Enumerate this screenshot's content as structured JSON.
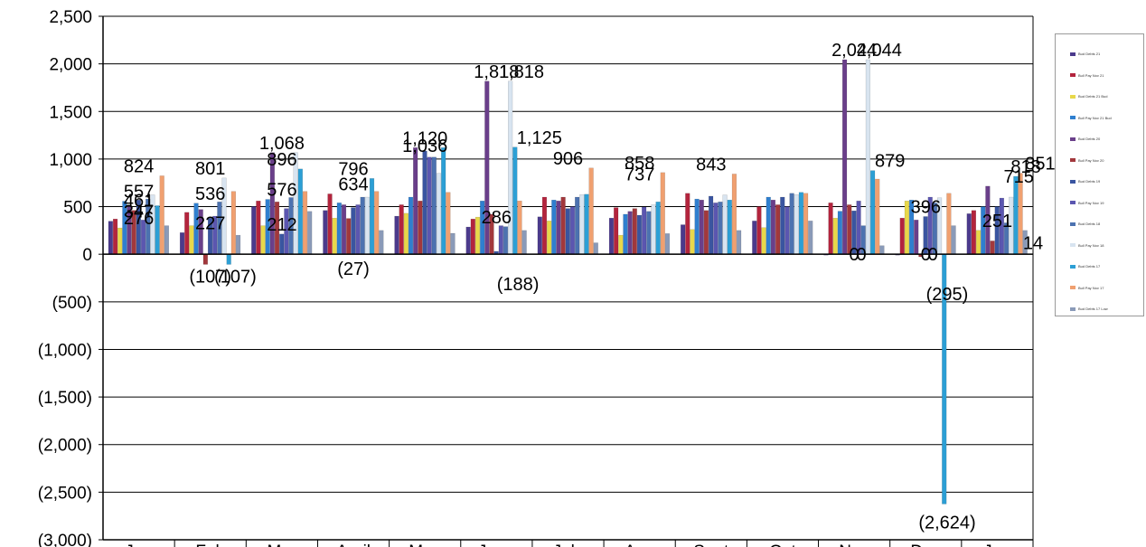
{
  "chart_data": {
    "type": "bar",
    "categories": [
      "Jan",
      "Feb",
      "Mar",
      "April",
      "May",
      "June",
      "July",
      "Aug",
      "Sept",
      "Oct",
      "Nov",
      "Dec",
      "Jan"
    ],
    "yticks": [
      "2,500",
      "2,000",
      "1,500",
      "1,000",
      "500",
      "0",
      "(500)",
      "(1,000)",
      "(1,500)",
      "(2,000)",
      "(2,500)",
      "(3,000)"
    ],
    "ylim": [
      -3000,
      2500
    ],
    "grid": true,
    "legend_position": "right",
    "series": [
      {
        "name": "Bud Debts 21",
        "color": "#4b3a8c",
        "values": [
          347,
          227,
          501,
          460,
          400,
          286,
          393,
          380,
          310,
          350,
          0,
          0,
          426
        ]
      },
      {
        "name": "Bull Pay Nov 21",
        "color": "#b3243d",
        "values": [
          370,
          440,
          560,
          634,
          520,
          370,
          600,
          490,
          640,
          500,
          540,
          380,
          460
        ]
      },
      {
        "name": "Bud Debts 21 Bud",
        "color": "#e8d84a",
        "values": [
          276,
          300,
          300,
          380,
          430,
          390,
          350,
          200,
          260,
          280,
          380,
          560,
          251
        ]
      },
      {
        "name": "Bull Pay Nov 21 Bud",
        "color": "#2f7fcf",
        "values": [
          557,
          536,
          576,
          540,
          600,
          560,
          570,
          420,
          580,
          600,
          452,
          570,
          500
        ]
      },
      {
        "name": "Bud Debts 20",
        "color": "#6a3f8a",
        "values": [
          500,
          470,
          1068,
          520,
          1120,
          1818,
          560,
          450,
          570,
          570,
          2044,
          360,
          715
        ]
      },
      {
        "name": "Bull Pay Nov 20",
        "color": "#a2383c",
        "values": [
          461,
          -107,
          550,
          376,
          560,
          420,
          600,
          480,
          460,
          520,
          520,
          -27,
          140
        ]
      },
      {
        "name": "Bud Debts 19",
        "color": "#3a55a0",
        "values": [
          570,
          380,
          212,
          490,
          1085,
          30,
          480,
          410,
          610,
          600,
          456,
          396,
          500
        ]
      },
      {
        "name": "Bull Pay Nov 19",
        "color": "#5b56b0",
        "values": [
          360,
          400,
          480,
          520,
          1020,
          300,
          500,
          496,
          540,
          500,
          560,
          600,
          590
        ]
      },
      {
        "name": "Bud Debts 18",
        "color": "#4c72b0",
        "values": [
          580,
          550,
          596,
          600,
          1020,
          290,
          600,
          450,
          550,
          640,
          300,
          540,
          330
        ]
      },
      {
        "name": "Bull Pay Nov 18",
        "color": "#d8e4f0",
        "values": [
          624,
          801,
          1068,
          600,
          850,
          1818,
          627,
          520,
          623,
          627,
          2044,
          593,
          600
        ]
      },
      {
        "name": "Bud Debts 17",
        "color": "#2c9fd5",
        "values": [
          510,
          -107,
          896,
          796,
          1120,
          1125,
          630,
          550,
          570,
          650,
          879,
          -2624,
          818
        ]
      },
      {
        "name": "Bull Pay Nov 17",
        "color": "#f0a070",
        "values": [
          824,
          660,
          660,
          660,
          650,
          560,
          906,
          858,
          843,
          640,
          790,
          640,
          851
        ]
      },
      {
        "name": "Bud Debts 17 Low",
        "color": "#8a9ab8",
        "values": [
          300,
          200,
          450,
          250,
          220,
          250,
          120,
          217,
          250,
          350,
          90,
          300,
          250
        ]
      }
    ],
    "data_labels": [
      {
        "text": "824",
        "category": 0,
        "value": 824
      },
      {
        "text": "347",
        "category": 0,
        "value": 347
      },
      {
        "text": "276",
        "category": 0,
        "value": 276
      },
      {
        "text": "557",
        "category": 0,
        "value": 557
      },
      {
        "text": "461",
        "category": 0,
        "value": 461
      },
      {
        "text": "227",
        "category": 1,
        "value": 227
      },
      {
        "text": "536",
        "category": 1,
        "value": 536
      },
      {
        "text": "801",
        "category": 1,
        "value": 801
      },
      {
        "text": "(107)",
        "category": 1,
        "value": -107
      },
      {
        "text": "(107)",
        "category": 1.35,
        "value": -107
      },
      {
        "text": "1,068",
        "category": 2,
        "value": 1068
      },
      {
        "text": "896",
        "category": 2,
        "value": 896
      },
      {
        "text": "576",
        "category": 2,
        "value": 576
      },
      {
        "text": "212",
        "category": 2,
        "value": 212
      },
      {
        "text": "634",
        "category": 3,
        "value": 634
      },
      {
        "text": "796",
        "category": 3,
        "value": 796
      },
      {
        "text": "(27)",
        "category": 3,
        "value": -27
      },
      {
        "text": "1,120",
        "category": 4,
        "value": 1120
      },
      {
        "text": "1,036",
        "category": 4,
        "value": 1036
      },
      {
        "text": "1,818",
        "category": 5,
        "value": 1818
      },
      {
        "text": "1,818",
        "category": 5.35,
        "value": 1818
      },
      {
        "text": "1,125",
        "category": 5.6,
        "value": 1125
      },
      {
        "text": "(188)",
        "category": 5.3,
        "value": -188
      },
      {
        "text": "286",
        "category": 5,
        "value": 286
      },
      {
        "text": "906",
        "category": 6,
        "value": 906
      },
      {
        "text": "737",
        "category": 7,
        "value": 737
      },
      {
        "text": "858",
        "category": 7,
        "value": 858
      },
      {
        "text": "843",
        "category": 8,
        "value": 843
      },
      {
        "text": "2,044",
        "category": 10,
        "value": 2044
      },
      {
        "text": "2,044",
        "category": 10.35,
        "value": 2044
      },
      {
        "text": "879",
        "category": 10.5,
        "value": 879
      },
      {
        "text": "0",
        "category": 10,
        "value": 0
      },
      {
        "text": "0",
        "category": 10.1,
        "value": 0
      },
      {
        "text": "396",
        "category": 11,
        "value": 396
      },
      {
        "text": "(2,624)",
        "category": 11.3,
        "value": -2624
      },
      {
        "text": "(295)",
        "category": 11.3,
        "value": -295
      },
      {
        "text": "0",
        "category": 11,
        "value": 0
      },
      {
        "text": "0",
        "category": 11.1,
        "value": 0
      },
      {
        "text": "851",
        "category": 12.6,
        "value": 851
      },
      {
        "text": "818",
        "category": 12.4,
        "value": 818
      },
      {
        "text": "715",
        "category": 12.3,
        "value": 715
      },
      {
        "text": "251",
        "category": 12,
        "value": 251
      },
      {
        "text": "14",
        "category": 12.5,
        "value": 14
      }
    ]
  }
}
